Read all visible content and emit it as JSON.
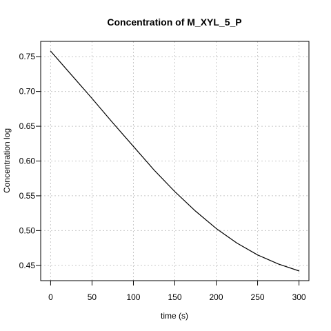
{
  "chart_data": {
    "type": "line",
    "title": "Concentration of M_XYL_5_P",
    "xlabel": "time (s)",
    "ylabel": "Concentration log",
    "xlim": [
      -12,
      312
    ],
    "ylim": [
      0.428,
      0.772
    ],
    "xticks": [
      0,
      50,
      100,
      150,
      200,
      250,
      300
    ],
    "xtick_labels": [
      "0",
      "50",
      "100",
      "150",
      "200",
      "250",
      "300"
    ],
    "yticks": [
      0.45,
      0.5,
      0.55,
      0.6,
      0.65,
      0.7,
      0.75
    ],
    "ytick_labels": [
      "0.45",
      "0.50",
      "0.55",
      "0.60",
      "0.65",
      "0.70",
      "0.75"
    ],
    "grid": true,
    "series": [
      {
        "color": "#000000",
        "x": [
          0,
          25,
          50,
          75,
          100,
          125,
          150,
          175,
          200,
          225,
          250,
          275,
          300
        ],
        "y": [
          0.758,
          0.724,
          0.69,
          0.655,
          0.621,
          0.587,
          0.556,
          0.528,
          0.503,
          0.482,
          0.465,
          0.452,
          0.442
        ]
      }
    ]
  }
}
